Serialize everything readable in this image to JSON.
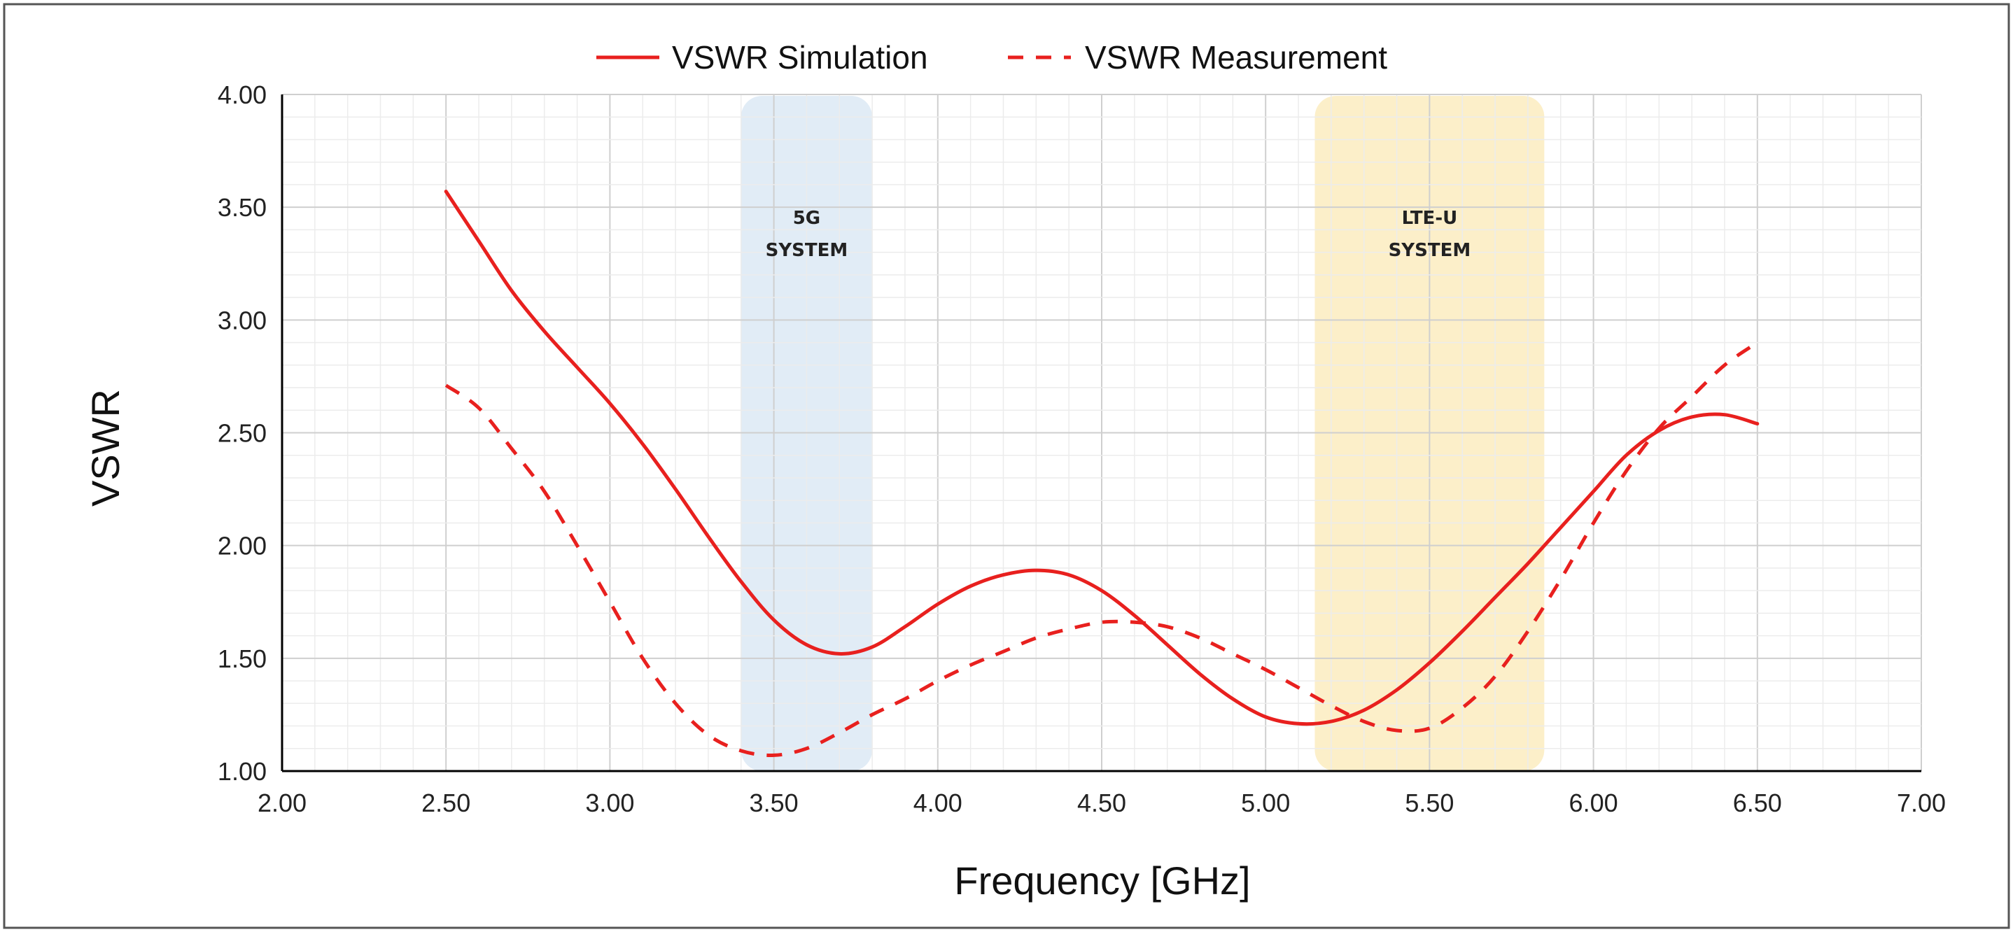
{
  "chart_data": {
    "type": "line",
    "title": "",
    "xlabel": "Frequency [GHz]",
    "ylabel": "VSWR",
    "xlim": [
      2.0,
      7.0
    ],
    "ylim": [
      1.0,
      4.0
    ],
    "xticks": [
      "2.00",
      "2.50",
      "3.00",
      "3.50",
      "4.00",
      "4.50",
      "5.00",
      "5.50",
      "6.00",
      "6.50",
      "7.00"
    ],
    "yticks": [
      "1.00",
      "1.50",
      "2.00",
      "2.50",
      "3.00",
      "3.50",
      "4.00"
    ],
    "grid": true,
    "legend_position": "top",
    "bands": [
      {
        "label_line1": "5G",
        "label_line2": "SYSTEM",
        "x_start": 3.4,
        "x_end": 3.8,
        "color": "#dce9f5"
      },
      {
        "label_line1": "LTE-U",
        "label_line2": "SYSTEM",
        "x_start": 5.15,
        "x_end": 5.85,
        "color": "#fcecc0"
      }
    ],
    "series": [
      {
        "name": "VSWR Simulation",
        "style": "solid",
        "color": "#e8201e",
        "x": [
          2.5,
          2.6,
          2.7,
          2.8,
          2.9,
          3.0,
          3.1,
          3.2,
          3.3,
          3.4,
          3.5,
          3.6,
          3.7,
          3.8,
          3.9,
          4.0,
          4.1,
          4.2,
          4.3,
          4.4,
          4.5,
          4.6,
          4.7,
          4.8,
          4.9,
          5.0,
          5.1,
          5.2,
          5.3,
          5.4,
          5.5,
          5.6,
          5.7,
          5.8,
          5.9,
          6.0,
          6.1,
          6.2,
          6.3,
          6.4,
          6.5
        ],
        "y": [
          3.57,
          3.35,
          3.13,
          2.95,
          2.79,
          2.63,
          2.45,
          2.25,
          2.04,
          1.84,
          1.67,
          1.56,
          1.52,
          1.55,
          1.64,
          1.74,
          1.82,
          1.87,
          1.89,
          1.87,
          1.8,
          1.69,
          1.56,
          1.43,
          1.32,
          1.24,
          1.21,
          1.22,
          1.27,
          1.36,
          1.48,
          1.62,
          1.77,
          1.92,
          2.08,
          2.24,
          2.4,
          2.51,
          2.57,
          2.58,
          2.54
        ]
      },
      {
        "name": "VSWR Measurement",
        "style": "dashed",
        "color": "#e8201e",
        "x": [
          2.5,
          2.6,
          2.7,
          2.8,
          2.9,
          3.0,
          3.1,
          3.2,
          3.3,
          3.4,
          3.5,
          3.6,
          3.7,
          3.8,
          3.9,
          4.0,
          4.1,
          4.2,
          4.3,
          4.4,
          4.5,
          4.6,
          4.7,
          4.8,
          4.9,
          5.0,
          5.1,
          5.2,
          5.3,
          5.4,
          5.5,
          5.6,
          5.7,
          5.8,
          5.9,
          6.0,
          6.1,
          6.2,
          6.3,
          6.4,
          6.5
        ],
        "y": [
          2.71,
          2.61,
          2.43,
          2.24,
          2.0,
          1.75,
          1.5,
          1.3,
          1.16,
          1.09,
          1.07,
          1.1,
          1.17,
          1.25,
          1.32,
          1.4,
          1.47,
          1.53,
          1.59,
          1.63,
          1.66,
          1.66,
          1.64,
          1.59,
          1.52,
          1.45,
          1.37,
          1.29,
          1.22,
          1.18,
          1.19,
          1.28,
          1.42,
          1.62,
          1.85,
          2.1,
          2.33,
          2.52,
          2.66,
          2.8,
          2.9
        ]
      }
    ]
  }
}
